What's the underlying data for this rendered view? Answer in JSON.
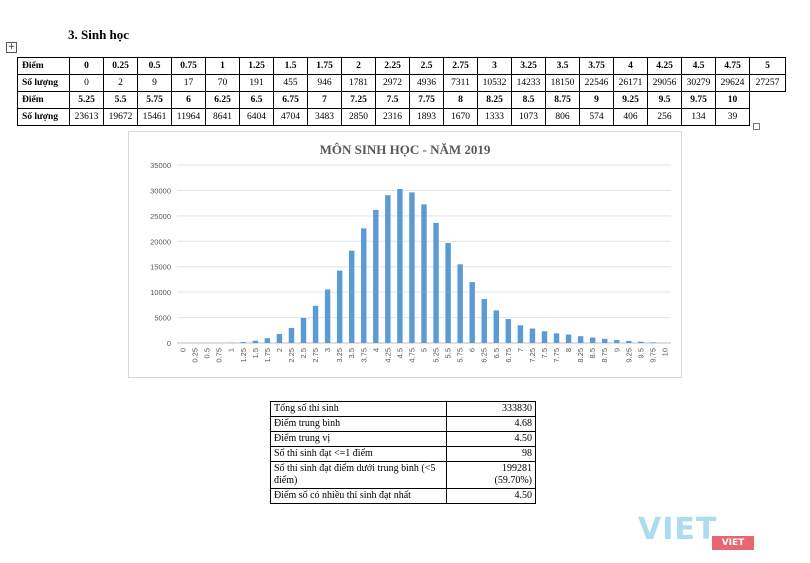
{
  "heading": "3.  Sinh học",
  "score_table": {
    "row_label_diem": "Điểm",
    "row_label_soluong": "Số lượng",
    "row1_scores": [
      "0",
      "0.25",
      "0.5",
      "0.75",
      "1",
      "1.25",
      "1.5",
      "1.75",
      "2",
      "2.25",
      "2.5",
      "2.75",
      "3",
      "3.25",
      "3.5",
      "3.75",
      "4",
      "4.25",
      "4.5",
      "4.75",
      "5"
    ],
    "row1_counts": [
      "0",
      "2",
      "9",
      "17",
      "70",
      "191",
      "455",
      "946",
      "1781",
      "2972",
      "4936",
      "7311",
      "10532",
      "14233",
      "18150",
      "22546",
      "26171",
      "29056",
      "30279",
      "29624",
      "27257"
    ],
    "row2_scores": [
      "5.25",
      "5.5",
      "5.75",
      "6",
      "6.25",
      "6.5",
      "6.75",
      "7",
      "7.25",
      "7.5",
      "7.75",
      "8",
      "8.25",
      "8.5",
      "8.75",
      "9",
      "9.25",
      "9.5",
      "9.75",
      "10"
    ],
    "row2_counts": [
      "23613",
      "19672",
      "15461",
      "11964",
      "8641",
      "6404",
      "4704",
      "3483",
      "2850",
      "2316",
      "1893",
      "1670",
      "1333",
      "1073",
      "806",
      "574",
      "406",
      "256",
      "134",
      "39"
    ]
  },
  "chart_data": {
    "type": "bar",
    "title": "MÔN SINH HỌC - NĂM 2019",
    "xlabel": "",
    "ylabel": "",
    "ylim": [
      0,
      35000
    ],
    "yticks": [
      "0",
      "5000",
      "10000",
      "15000",
      "20000",
      "25000",
      "30000",
      "35000"
    ],
    "categories": [
      "0",
      "0.25",
      "0.5",
      "0.75",
      "1",
      "1.25",
      "1.5",
      "1.75",
      "2",
      "2.25",
      "2.5",
      "2.75",
      "3",
      "3.25",
      "3.5",
      "3.75",
      "4",
      "4.25",
      "4.5",
      "4.75",
      "5",
      "5.25",
      "5.5",
      "5.75",
      "6",
      "6.25",
      "6.5",
      "6.75",
      "7",
      "7.25",
      "7.5",
      "7.75",
      "8",
      "8.25",
      "8.5",
      "8.75",
      "9",
      "9.25",
      "9.5",
      "9.75",
      "10"
    ],
    "values": [
      0,
      2,
      9,
      17,
      70,
      191,
      455,
      946,
      1781,
      2972,
      4936,
      7311,
      10532,
      14233,
      18150,
      22546,
      26171,
      29056,
      30279,
      29624,
      27257,
      23613,
      19672,
      15461,
      11964,
      8641,
      6404,
      4704,
      3483,
      2850,
      2316,
      1893,
      1670,
      1333,
      1073,
      806,
      574,
      406,
      256,
      134,
      39
    ],
    "bar_color": "#5b9bd5",
    "grid": true
  },
  "stats": [
    {
      "label": "Tổng số thí sinh",
      "value": "333830"
    },
    {
      "label": "Điểm trung bình",
      "value": "4.68"
    },
    {
      "label": "Điểm trung vị",
      "value": "4.50"
    },
    {
      "label": "Số thí sinh đạt <=1 điểm",
      "value": "98"
    },
    {
      "label": "Số thí sinh đạt điểm dưới trung bình (<5 điểm)",
      "value": "199281",
      "value2": "(59.70%)"
    },
    {
      "label": "Điểm số có nhiều thí sinh đạt nhất",
      "value": "4.50"
    }
  ],
  "watermark": {
    "main": "VIET",
    "sub": "VIET"
  }
}
